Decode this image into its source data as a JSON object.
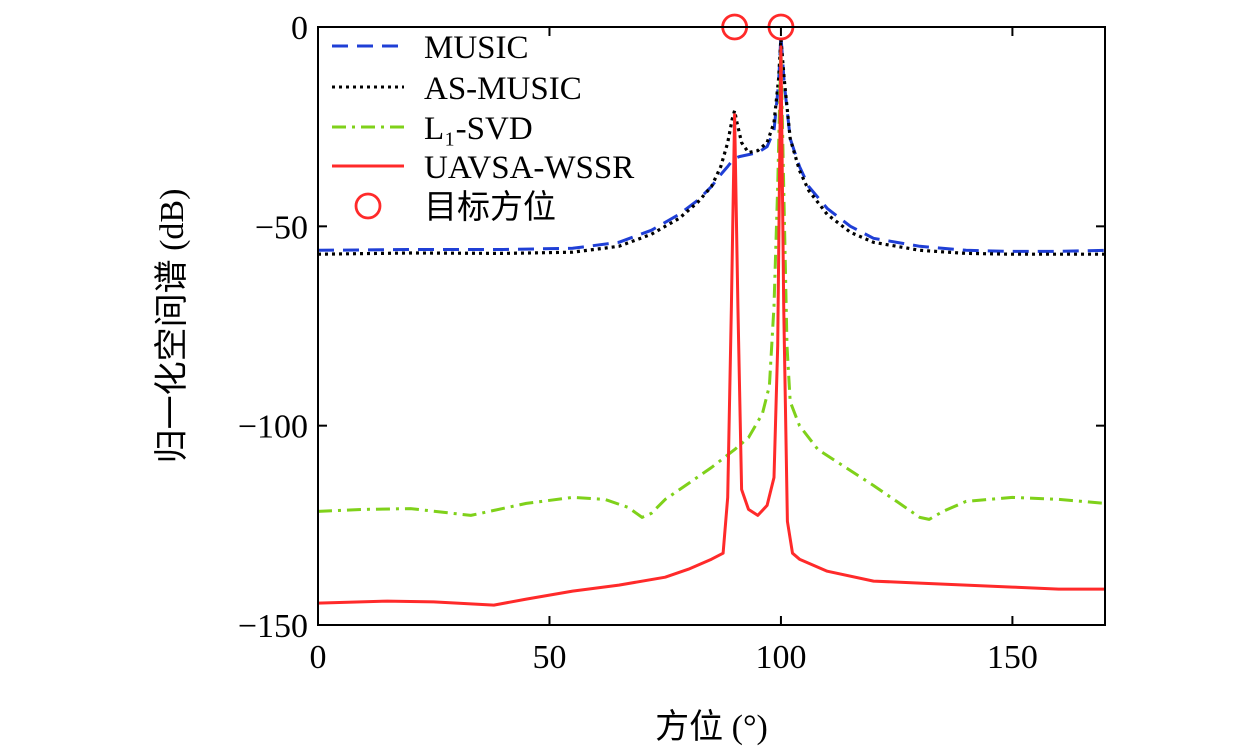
{
  "chart_data": {
    "type": "line",
    "title": "",
    "xlabel": "方位 (°)",
    "ylabel": "归一化空间谱 (dB)",
    "xlim": [
      0,
      170
    ],
    "ylim": [
      -150,
      0
    ],
    "xticks": [
      0,
      50,
      100,
      150
    ],
    "yticks": [
      0,
      -50,
      -100,
      -150
    ],
    "grid": false,
    "legend_position": "top-left",
    "series": [
      {
        "name": "MUSIC",
        "color": "#1f3fd6",
        "style": "dashed",
        "x": [
          0,
          20,
          40,
          55,
          65,
          72,
          78,
          82,
          85,
          87,
          88.5,
          89.5,
          90,
          91,
          93,
          95,
          97,
          98.5,
          99.5,
          100,
          100.7,
          102,
          104,
          106,
          110,
          115,
          120,
          130,
          140,
          150,
          160,
          170
        ],
        "values": [
          -56,
          -55.8,
          -55.8,
          -55.5,
          -54,
          -51,
          -47,
          -43.5,
          -40,
          -37,
          -35,
          -33.5,
          -33,
          -32.5,
          -32,
          -31.5,
          -30,
          -26,
          -14,
          -2,
          -14,
          -28,
          -35,
          -40,
          -45.5,
          -50,
          -53,
          -55,
          -56,
          -56.3,
          -56.3,
          -56
        ]
      },
      {
        "name": "AS-MUSIC",
        "color": "#000000",
        "style": "dotted",
        "x": [
          0,
          20,
          40,
          55,
          65,
          72,
          78,
          82,
          85,
          87,
          88.5,
          89.5,
          90,
          90.5,
          91.5,
          93,
          95,
          97,
          98.5,
          99.5,
          100,
          100.7,
          102,
          104,
          106,
          110,
          115,
          120,
          130,
          140,
          150,
          160,
          170
        ],
        "values": [
          -57,
          -56.7,
          -56.8,
          -56.5,
          -55,
          -52,
          -48,
          -44,
          -40,
          -35,
          -29,
          -23,
          -21,
          -24,
          -29,
          -31.5,
          -31,
          -29,
          -24,
          -13,
          -3,
          -13,
          -28,
          -36,
          -41,
          -47,
          -51.5,
          -54,
          -56,
          -56.8,
          -57,
          -57,
          -57
        ]
      },
      {
        "name": "L₁-SVD",
        "color": "#7fd11a",
        "style": "dashdot",
        "x": [
          0,
          10,
          20,
          33,
          45,
          55,
          62,
          67,
          70,
          72,
          75,
          80,
          85,
          90,
          93,
          96,
          97.5,
          98.5,
          99.3,
          100,
          100.6,
          101.3,
          102,
          104,
          108,
          114,
          120,
          125,
          130,
          132,
          135,
          140,
          150,
          160,
          170
        ],
        "values": [
          -121.5,
          -121,
          -120.8,
          -122.5,
          -119.5,
          -118,
          -118.5,
          -120.5,
          -123,
          -122,
          -118.5,
          -114.5,
          -110.5,
          -106,
          -103,
          -97,
          -90,
          -70,
          -40,
          -5,
          -40,
          -80,
          -94,
          -100,
          -106,
          -110.5,
          -115,
          -119,
          -123,
          -123.5,
          -121.5,
          -119,
          -118,
          -118.5,
          -119.5
        ]
      },
      {
        "name": "UAVSA-WSSR",
        "color": "#ff2a2a",
        "style": "solid",
        "x": [
          0,
          15,
          25,
          38,
          45,
          55,
          65,
          75,
          80,
          85,
          87.5,
          88.5,
          89.3,
          90,
          90.7,
          91.5,
          93,
          95,
          97,
          98.5,
          99.3,
          100,
          100.6,
          101.4,
          102.5,
          104,
          110,
          120,
          130,
          140,
          150,
          160,
          170
        ],
        "values": [
          -144.5,
          -144,
          -144.2,
          -145,
          -143.5,
          -141.5,
          -140,
          -138,
          -136,
          -133.5,
          -132,
          -118,
          -70,
          -22,
          -70,
          -116,
          -121,
          -122.5,
          -120,
          -113,
          -80,
          -5,
          -70,
          -124,
          -132,
          -133.5,
          -136.5,
          -139,
          -139.5,
          -140,
          -140.5,
          -141,
          -141
        ]
      }
    ],
    "markers": {
      "name": "目标方位",
      "color": "#ff2a2a",
      "shape": "circle",
      "x": [
        90,
        100
      ],
      "values": [
        0,
        0
      ]
    }
  }
}
